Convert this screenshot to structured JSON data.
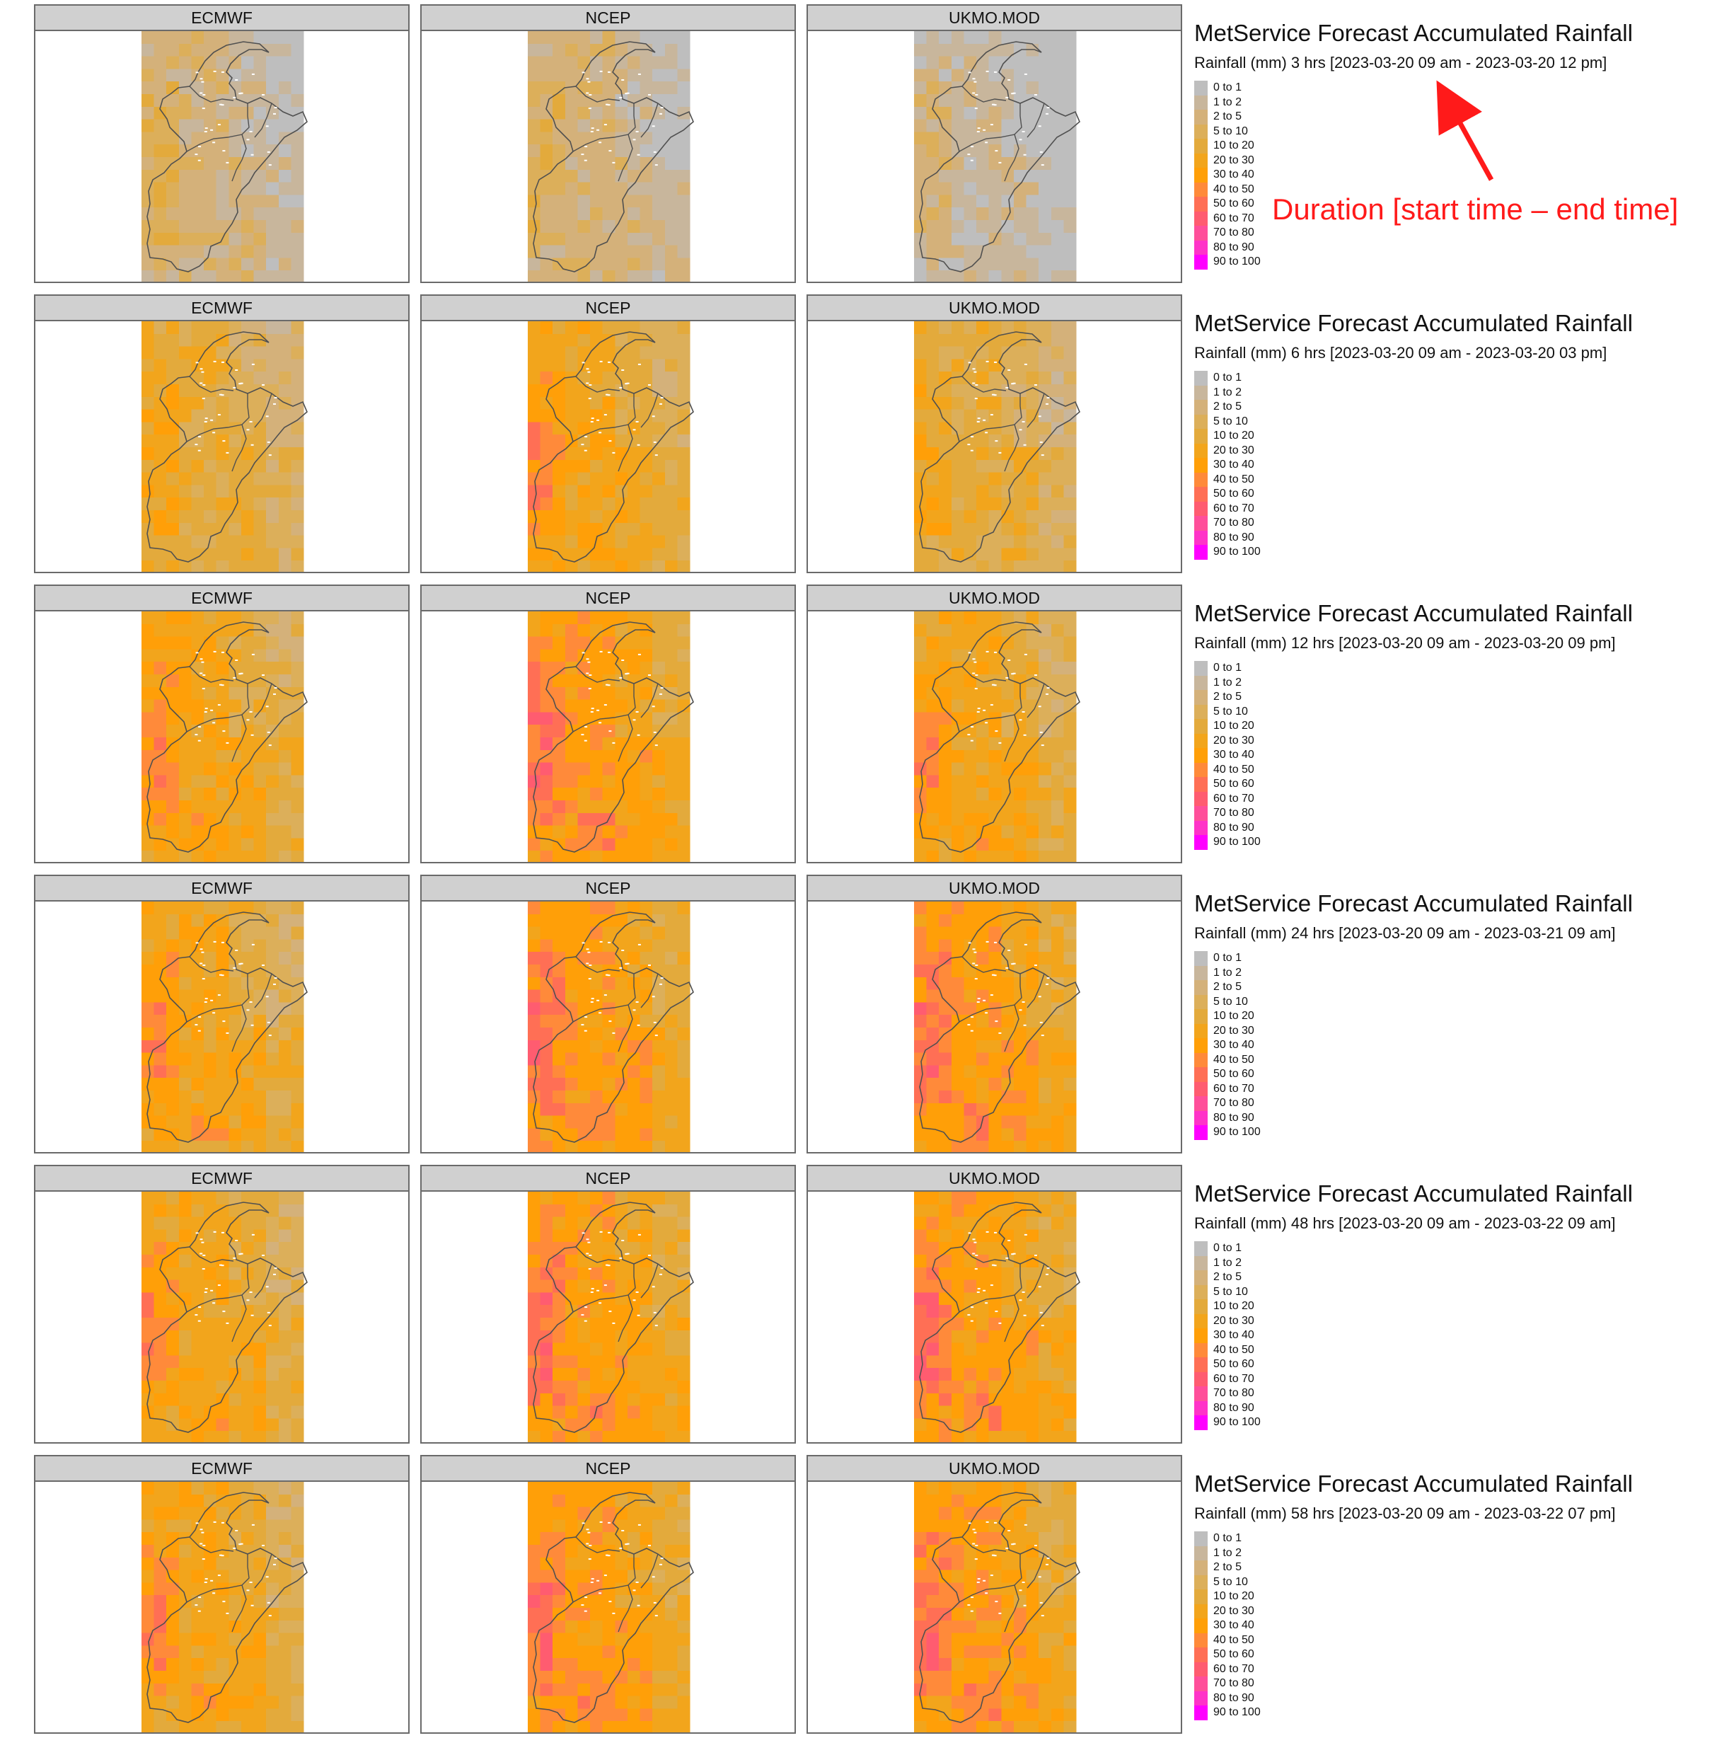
{
  "chart_data": {
    "type": "heatmap",
    "models": [
      "ECMWF",
      "NCEP",
      "UKMO.MOD"
    ],
    "legend": {
      "title": "MetService Forecast Accumulated Rainfall",
      "bins": [
        {
          "label": "0 to 1",
          "color": "#bebebe"
        },
        {
          "label": "1 to 2",
          "color": "#c8b69c"
        },
        {
          "label": "2 to 5",
          "color": "#d4b17a"
        },
        {
          "label": "5 to 10",
          "color": "#dcaf5a"
        },
        {
          "label": "10 to 20",
          "color": "#e3aa3c"
        },
        {
          "label": "20 to 30",
          "color": "#f2a51c"
        },
        {
          "label": "30 to 40",
          "color": "#ff9f08"
        },
        {
          "label": "40 to 50",
          "color": "#ff8a3a"
        },
        {
          "label": "50 to 60",
          "color": "#ff6f55"
        },
        {
          "label": "60 to 70",
          "color": "#ff5c70"
        },
        {
          "label": "70 to 80",
          "color": "#ff4f9a"
        },
        {
          "label": "80 to 90",
          "color": "#ff33c8"
        },
        {
          "label": "90 to 100",
          "color": "#ff00ff"
        }
      ]
    },
    "periods": [
      {
        "subtitle": "Rainfall (mm) 3 hrs [2023-03-20 09 am - 2023-03-20 12 pm]",
        "levels": [
          2,
          2,
          1
        ]
      },
      {
        "subtitle": "Rainfall (mm) 6 hrs [2023-03-20 09 am - 2023-03-20 03 pm]",
        "levels": [
          4,
          5,
          4
        ]
      },
      {
        "subtitle": "Rainfall (mm) 12 hrs [2023-03-20 09 am - 2023-03-20 09 pm]",
        "levels": [
          5,
          6,
          5
        ]
      },
      {
        "subtitle": "Rainfall (mm) 24 hrs [2023-03-20 09 am - 2023-03-21 09 am]",
        "levels": [
          5,
          6,
          6
        ]
      },
      {
        "subtitle": "Rainfall (mm) 48 hrs [2023-03-20 09 am - 2023-03-22 09 am]",
        "levels": [
          5,
          6,
          6
        ]
      },
      {
        "subtitle": "Rainfall (mm) 58 hrs [2023-03-20 09 am - 2023-03-22 07 pm]",
        "levels": [
          5,
          6,
          6
        ]
      }
    ]
  },
  "annotation": {
    "text": "Duration [start time – end time]",
    "color": "#ff1a1a"
  }
}
